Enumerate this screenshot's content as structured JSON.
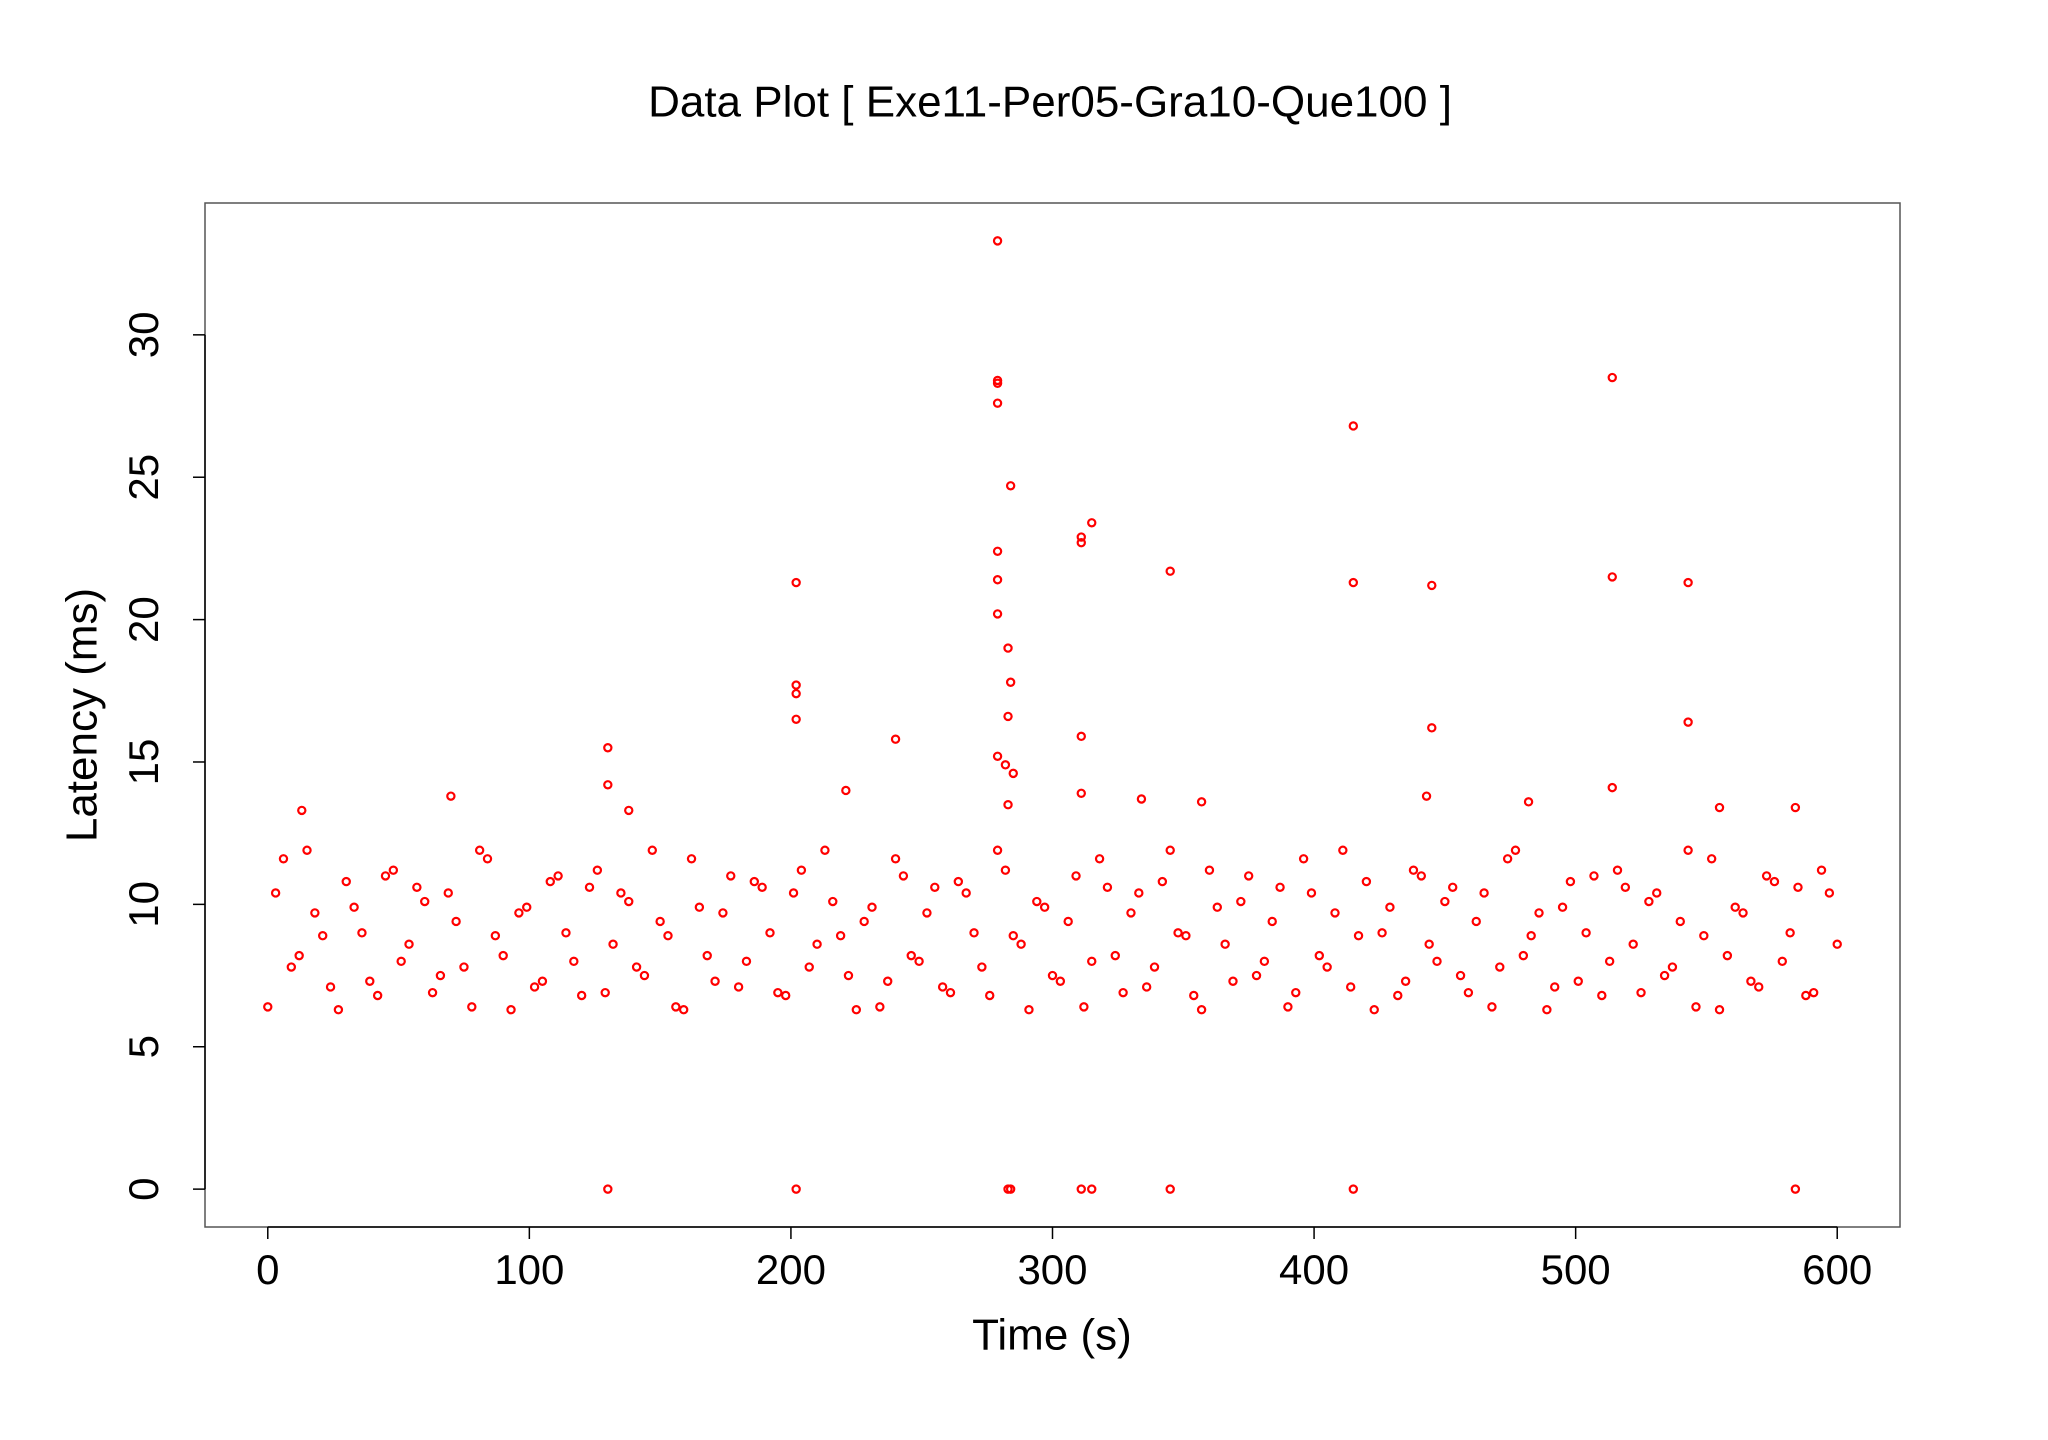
{
  "chart_data": {
    "type": "scatter",
    "title": "Data Plot [ Exe11-Per05-Gra10-Que100 ]",
    "x_label": "Time (s)",
    "y_label": "Latency (ms)",
    "xlim": [
      -24,
      624
    ],
    "ylim": [
      -1.33,
      34.63
    ],
    "xticks": [
      0,
      100,
      200,
      300,
      400,
      500,
      600
    ],
    "yticks": [
      0,
      5,
      10,
      15,
      20,
      25,
      30
    ],
    "x": [
      0,
      6,
      12,
      18,
      24,
      30,
      36,
      42,
      48,
      54,
      60,
      66,
      72,
      78,
      84,
      90,
      96,
      102,
      108,
      114,
      120,
      126,
      132,
      138,
      144,
      150,
      156,
      162,
      168,
      174,
      180,
      186,
      192,
      198,
      204,
      210,
      216,
      222,
      228,
      234,
      240,
      246,
      252,
      258,
      264,
      270,
      276,
      282,
      288,
      294,
      300,
      306,
      312,
      318,
      324,
      330,
      336,
      342,
      348,
      354,
      360,
      366,
      372,
      378,
      384,
      390,
      396,
      402,
      408,
      414,
      420,
      426,
      432,
      438,
      444,
      450,
      456,
      462,
      468,
      474,
      480,
      486,
      492,
      498,
      504,
      510,
      516,
      522,
      528,
      534,
      540,
      546,
      552,
      558,
      564,
      570,
      576,
      582,
      588,
      594,
      600,
      3,
      9,
      15,
      21,
      27,
      33,
      39,
      45,
      51,
      57,
      63,
      69,
      75,
      81,
      87,
      93,
      99,
      105,
      111,
      117,
      123,
      129,
      135,
      141,
      147,
      153,
      159,
      165,
      171,
      177,
      183,
      189,
      195,
      201,
      207,
      213,
      219,
      225,
      231,
      237,
      243,
      249,
      255,
      261,
      267,
      273,
      279,
      285,
      291,
      297,
      303,
      309,
      315,
      321,
      327,
      333,
      339,
      345,
      351,
      357,
      363,
      369,
      375,
      381,
      387,
      393,
      399,
      405,
      411,
      417,
      423,
      429,
      435,
      441,
      447,
      453,
      459,
      465,
      471,
      477,
      483,
      489,
      495,
      501,
      507,
      513,
      519,
      525,
      531,
      537,
      543,
      549,
      555,
      561,
      567,
      573,
      579,
      585,
      591,
      597,
      279,
      279,
      279,
      279,
      514,
      415,
      284,
      315,
      311,
      311,
      279,
      279,
      279,
      345,
      202,
      415,
      445,
      514,
      543,
      202,
      202,
      202,
      283,
      284,
      283,
      445,
      543,
      130,
      240,
      311,
      279,
      282,
      285,
      130,
      221,
      514,
      311,
      334,
      357,
      443,
      482,
      70,
      13,
      555,
      584,
      283,
      138,
      130,
      202,
      283,
      284,
      311,
      315,
      345,
      415,
      584
    ],
    "series": [
      {
        "color": "#ff0000",
        "values": [
          6.4,
          11.6,
          8.2,
          9.7,
          7.1,
          10.8,
          9.0,
          6.8,
          11.2,
          8.6,
          10.1,
          7.5,
          9.4,
          6.4,
          11.6,
          8.2,
          9.7,
          7.1,
          10.8,
          9.0,
          6.8,
          11.2,
          8.6,
          10.1,
          7.5,
          9.4,
          6.4,
          11.6,
          8.2,
          9.7,
          7.1,
          10.8,
          9.0,
          6.8,
          11.2,
          8.6,
          10.1,
          7.5,
          9.4,
          6.4,
          11.6,
          8.2,
          9.7,
          7.1,
          10.8,
          9.0,
          6.8,
          11.2,
          8.6,
          10.1,
          7.5,
          9.4,
          6.4,
          11.6,
          8.2,
          9.7,
          7.1,
          10.8,
          9.0,
          6.8,
          11.2,
          8.6,
          10.1,
          7.5,
          9.4,
          6.4,
          11.6,
          8.2,
          9.7,
          7.1,
          10.8,
          9.0,
          6.8,
          11.2,
          8.6,
          10.1,
          7.5,
          9.4,
          6.4,
          11.6,
          8.2,
          9.7,
          7.1,
          10.8,
          9.0,
          6.8,
          11.2,
          8.6,
          10.1,
          7.5,
          9.4,
          6.4,
          11.6,
          8.2,
          9.7,
          7.1,
          10.8,
          9.0,
          6.8,
          11.2,
          8.6,
          10.4,
          7.8,
          11.9,
          8.9,
          6.3,
          9.9,
          7.3,
          11.0,
          8.0,
          10.6,
          6.9,
          10.4,
          7.8,
          11.9,
          8.9,
          6.3,
          9.9,
          7.3,
          11.0,
          8.0,
          10.6,
          6.9,
          10.4,
          7.8,
          11.9,
          8.9,
          6.3,
          9.9,
          7.3,
          11.0,
          8.0,
          10.6,
          6.9,
          10.4,
          7.8,
          11.9,
          8.9,
          6.3,
          9.9,
          7.3,
          11.0,
          8.0,
          10.6,
          6.9,
          10.4,
          7.8,
          11.9,
          8.9,
          6.3,
          9.9,
          7.3,
          11.0,
          8.0,
          10.6,
          6.9,
          10.4,
          7.8,
          11.9,
          8.9,
          6.3,
          9.9,
          7.3,
          11.0,
          8.0,
          10.6,
          6.9,
          10.4,
          7.8,
          11.9,
          8.9,
          6.3,
          9.9,
          7.3,
          11.0,
          8.0,
          10.6,
          6.9,
          10.4,
          7.8,
          11.9,
          8.9,
          6.3,
          9.9,
          7.3,
          11.0,
          8.0,
          10.6,
          6.9,
          10.4,
          7.8,
          11.9,
          8.9,
          6.3,
          9.9,
          7.3,
          11.0,
          8.0,
          10.6,
          6.9,
          10.4,
          33.3,
          28.4,
          28.3,
          27.6,
          28.5,
          26.8,
          24.7,
          23.4,
          22.9,
          22.7,
          22.4,
          21.4,
          20.2,
          21.7,
          21.3,
          21.3,
          21.2,
          21.5,
          21.3,
          17.7,
          17.4,
          16.5,
          19.0,
          17.8,
          16.6,
          16.2,
          16.4,
          15.5,
          15.8,
          15.9,
          15.2,
          14.9,
          14.6,
          14.2,
          14.0,
          14.1,
          13.9,
          13.7,
          13.6,
          13.8,
          13.6,
          13.8,
          13.3,
          13.4,
          13.4,
          13.5,
          13.3,
          0,
          0,
          0,
          0,
          0,
          0,
          0,
          0,
          0
        ]
      }
    ]
  }
}
